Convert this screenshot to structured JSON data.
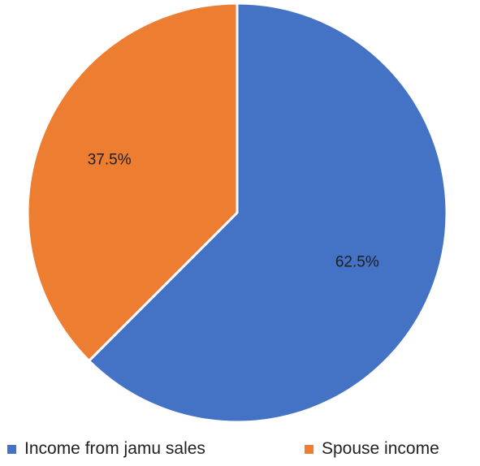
{
  "chart_data": {
    "type": "pie",
    "categories": [
      "Income from jamu sales",
      "Spouse income"
    ],
    "values": [
      62.5,
      37.5
    ],
    "value_labels": [
      "62.5%",
      "37.5%"
    ],
    "colors": [
      "#4472C4",
      "#ED7D31"
    ],
    "start_angle": "12 o'clock",
    "direction": "clockwise",
    "legend": "bottom"
  }
}
